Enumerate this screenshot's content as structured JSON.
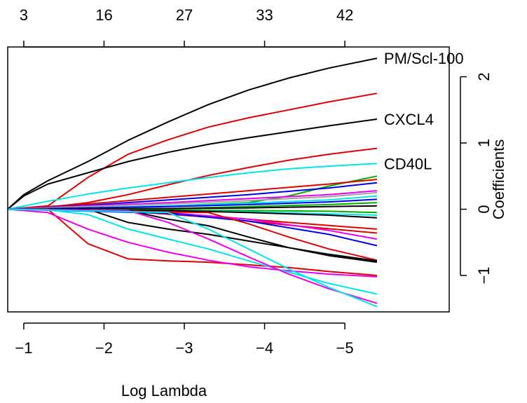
{
  "chart_data": {
    "type": "line",
    "title": "",
    "xlabel": "Log Lambda",
    "ylabel": "Coefficients",
    "x_reversed": true,
    "xlim": [
      -0.8,
      -6.3
    ],
    "ylim": [
      -1.55,
      2.45
    ],
    "x_ticks": [
      -1,
      -2,
      -3,
      -4,
      -5
    ],
    "x_tick_labels": [
      "−1",
      "−2",
      "−3",
      "−4",
      "−5"
    ],
    "y_ticks": [
      -1,
      0,
      1,
      2
    ],
    "y_tick_labels": [
      "−1",
      "0",
      "1",
      "2"
    ],
    "top_axis": {
      "positions": [
        -1,
        -2,
        -3,
        -4,
        -5
      ],
      "labels": [
        "3",
        "16",
        "27",
        "33",
        "42"
      ]
    },
    "grid": false,
    "series": [
      {
        "name": "PM/Scl-100",
        "color": "#000000",
        "x": [
          -0.8,
          -1.0,
          -1.3,
          -1.8,
          -2.3,
          -2.8,
          -3.3,
          -3.8,
          -4.3,
          -4.8,
          -5.4
        ],
        "y": [
          0,
          0.22,
          0.43,
          0.72,
          1.04,
          1.32,
          1.58,
          1.8,
          1.98,
          2.13,
          2.28
        ]
      },
      {
        "name": "",
        "color": "#e00000",
        "x": [
          -0.8,
          -1.3,
          -1.8,
          -2.3,
          -2.8,
          -3.3,
          -3.8,
          -4.3,
          -4.8,
          -5.4
        ],
        "y": [
          0,
          0.05,
          0.48,
          0.83,
          1.05,
          1.24,
          1.38,
          1.5,
          1.62,
          1.75
        ]
      },
      {
        "name": "CXCL4",
        "color": "#000000",
        "x": [
          -0.8,
          -1.0,
          -1.3,
          -1.8,
          -2.3,
          -2.8,
          -3.3,
          -3.8,
          -4.3,
          -4.8,
          -5.4
        ],
        "y": [
          0,
          0.2,
          0.38,
          0.55,
          0.72,
          0.86,
          0.98,
          1.08,
          1.17,
          1.26,
          1.36
        ]
      },
      {
        "name": "",
        "color": "#e00000",
        "x": [
          -0.8,
          -1.3,
          -1.8,
          -2.3,
          -2.8,
          -3.3,
          -3.8,
          -4.3,
          -4.8,
          -5.4
        ],
        "y": [
          0,
          0.03,
          0.1,
          0.22,
          0.37,
          0.51,
          0.63,
          0.74,
          0.83,
          0.92
        ]
      },
      {
        "name": "CD40L",
        "color": "#00e5ee",
        "x": [
          -0.8,
          -1.3,
          -1.8,
          -2.3,
          -2.8,
          -3.3,
          -3.8,
          -4.3,
          -4.8,
          -5.4
        ],
        "y": [
          0,
          0.12,
          0.23,
          0.32,
          0.4,
          0.48,
          0.55,
          0.61,
          0.65,
          0.69
        ]
      },
      {
        "name": "",
        "color": "#00b000",
        "x": [
          -0.8,
          -1.8,
          -2.8,
          -3.8,
          -4.3,
          -4.8,
          -5.4
        ],
        "y": [
          0,
          0.02,
          0.05,
          0.1,
          0.2,
          0.35,
          0.5
        ]
      },
      {
        "name": "",
        "color": "#e00000",
        "x": [
          -0.8,
          -1.8,
          -2.8,
          -3.8,
          -4.8,
          -5.4
        ],
        "y": [
          0,
          0.08,
          0.18,
          0.28,
          0.38,
          0.45
        ]
      },
      {
        "name": "",
        "color": "#0000ee",
        "x": [
          -0.8,
          -1.8,
          -2.8,
          -3.8,
          -4.8,
          -5.4
        ],
        "y": [
          0,
          0.06,
          0.14,
          0.22,
          0.32,
          0.4
        ]
      },
      {
        "name": "",
        "color": "#ee00ee",
        "x": [
          -0.8,
          -1.8,
          -2.8,
          -3.8,
          -4.8,
          -5.4
        ],
        "y": [
          0,
          0.05,
          0.1,
          0.16,
          0.22,
          0.28
        ]
      },
      {
        "name": "",
        "color": "#a0a0a0",
        "x": [
          -0.8,
          -1.8,
          -2.8,
          -3.8,
          -4.8,
          -5.4
        ],
        "y": [
          0,
          0.04,
          0.08,
          0.13,
          0.19,
          0.25
        ]
      },
      {
        "name": "",
        "color": "#00e5ee",
        "x": [
          -0.8,
          -1.8,
          -2.8,
          -3.8,
          -4.8,
          -5.4
        ],
        "y": [
          0,
          0.02,
          0.05,
          0.09,
          0.14,
          0.2
        ]
      },
      {
        "name": "",
        "color": "#0000ee",
        "x": [
          -0.8,
          -1.8,
          -2.8,
          -3.8,
          -4.8,
          -5.4
        ],
        "y": [
          0,
          0.02,
          0.04,
          0.07,
          0.11,
          0.15
        ]
      },
      {
        "name": "",
        "color": "#00b000",
        "x": [
          -0.8,
          -2.8,
          -3.8,
          -4.8,
          -5.4
        ],
        "y": [
          0,
          0.01,
          0.04,
          0.07,
          0.1
        ]
      },
      {
        "name": "",
        "color": "#000000",
        "x": [
          -0.8,
          -2.8,
          -3.8,
          -4.8,
          -5.4
        ],
        "y": [
          0,
          0.01,
          0.02,
          0.04,
          0.05
        ]
      },
      {
        "name": "",
        "color": "#00b000",
        "x": [
          -0.8,
          -2.8,
          -3.8,
          -4.8,
          -5.4
        ],
        "y": [
          0,
          -0.01,
          -0.02,
          -0.03,
          -0.05
        ]
      },
      {
        "name": "",
        "color": "#00e5ee",
        "x": [
          -0.8,
          -2.8,
          -3.8,
          -4.8,
          -5.4
        ],
        "y": [
          0,
          -0.02,
          -0.04,
          -0.07,
          -0.09
        ]
      },
      {
        "name": "",
        "color": "#000000",
        "x": [
          -0.8,
          -2.8,
          -3.8,
          -4.8,
          -5.4
        ],
        "y": [
          0,
          -0.02,
          -0.05,
          -0.09,
          -0.13
        ]
      },
      {
        "name": "",
        "color": "#e00000",
        "x": [
          -0.8,
          -2.3,
          -3.3,
          -4.3,
          -5.4
        ],
        "y": [
          0,
          -0.02,
          -0.1,
          -0.2,
          -0.3
        ]
      },
      {
        "name": "",
        "color": "#e00000",
        "x": [
          -0.8,
          -2.3,
          -3.3,
          -4.3,
          -5.4
        ],
        "y": [
          0,
          -0.03,
          -0.12,
          -0.24,
          -0.36
        ]
      },
      {
        "name": "",
        "color": "#ee00ee",
        "x": [
          -0.8,
          -2.8,
          -3.8,
          -4.8,
          -5.4
        ],
        "y": [
          0,
          -0.05,
          -0.15,
          -0.32,
          -0.45
        ]
      },
      {
        "name": "",
        "color": "#0000ee",
        "x": [
          -0.8,
          -2.8,
          -3.8,
          -4.8,
          -5.4
        ],
        "y": [
          0,
          -0.06,
          -0.18,
          -0.38,
          -0.55
        ]
      },
      {
        "name": "",
        "color": "#e00000",
        "x": [
          -0.8,
          -3.3,
          -3.8,
          -4.3,
          -4.8,
          -5.4
        ],
        "y": [
          0,
          -0.05,
          -0.22,
          -0.42,
          -0.6,
          -0.77
        ]
      },
      {
        "name": "",
        "color": "#000000",
        "x": [
          -0.8,
          -2.3,
          -2.8,
          -3.3,
          -3.8,
          -4.3,
          -4.8,
          -5.4
        ],
        "y": [
          0,
          -0.02,
          -0.15,
          -0.25,
          -0.42,
          -0.58,
          -0.7,
          -0.8
        ]
      },
      {
        "name": "",
        "color": "#000000",
        "x": [
          -0.8,
          -1.8,
          -2.3,
          -2.8,
          -3.3,
          -3.8,
          -4.3,
          -4.8,
          -5.4
        ],
        "y": [
          0,
          0,
          -0.2,
          -0.3,
          -0.38,
          -0.48,
          -0.58,
          -0.68,
          -0.78
        ]
      },
      {
        "name": "",
        "color": "#e00000",
        "x": [
          -0.8,
          -1.3,
          -1.8,
          -2.3,
          -2.8,
          -3.3,
          -3.8,
          -4.3,
          -4.8,
          -5.4
        ],
        "y": [
          0,
          0,
          -0.52,
          -0.75,
          -0.78,
          -0.8,
          -0.84,
          -0.88,
          -0.94,
          -1.0
        ]
      },
      {
        "name": "",
        "color": "#ee00ee",
        "x": [
          -0.8,
          -1.3,
          -1.8,
          -2.3,
          -2.8,
          -3.3,
          -3.8,
          -4.3,
          -4.8,
          -5.4
        ],
        "y": [
          0,
          -0.05,
          -0.3,
          -0.5,
          -0.65,
          -0.77,
          -0.87,
          -0.93,
          -0.98,
          -1.02
        ]
      },
      {
        "name": "",
        "color": "#00e5ee",
        "x": [
          -0.8,
          -1.3,
          -1.8,
          -2.3,
          -2.8,
          -3.3,
          -3.8,
          -4.3,
          -4.8,
          -5.4
        ],
        "y": [
          0,
          -0.01,
          -0.08,
          -0.3,
          -0.45,
          -0.6,
          -0.78,
          -0.95,
          -1.12,
          -1.28
        ]
      },
      {
        "name": "",
        "color": "#ee00ee",
        "x": [
          -0.8,
          -2.3,
          -2.8,
          -3.3,
          -3.8,
          -4.3,
          -4.8,
          -5.4
        ],
        "y": [
          0,
          -0.02,
          -0.2,
          -0.45,
          -0.72,
          -0.98,
          -1.2,
          -1.42
        ]
      },
      {
        "name": "",
        "color": "#00e5ee",
        "x": [
          -0.8,
          -2.8,
          -3.3,
          -3.8,
          -4.3,
          -4.8,
          -5.4
        ],
        "y": [
          0,
          -0.05,
          -0.3,
          -0.6,
          -0.9,
          -1.18,
          -1.47
        ]
      }
    ],
    "annotations": [
      "PM/Scl-100",
      "CXCL4",
      "CD40L"
    ]
  }
}
